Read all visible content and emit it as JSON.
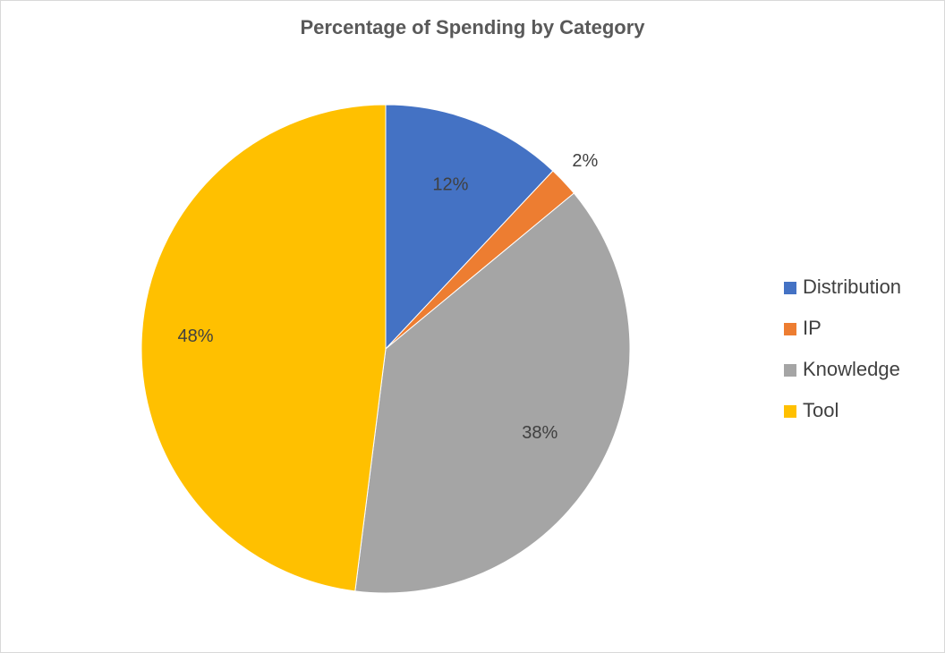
{
  "chart_data": {
    "type": "pie",
    "title": "Percentage of Spending by Category",
    "categories": [
      "Distribution",
      "IP",
      "Knowledge",
      "Tool"
    ],
    "values": [
      12,
      2,
      38,
      48
    ],
    "data_labels": [
      "12%",
      "2%",
      "38%",
      "48%"
    ],
    "colors": [
      "#4472c4",
      "#ed7d31",
      "#a5a5a5",
      "#ffc000"
    ],
    "legend_position": "right"
  }
}
